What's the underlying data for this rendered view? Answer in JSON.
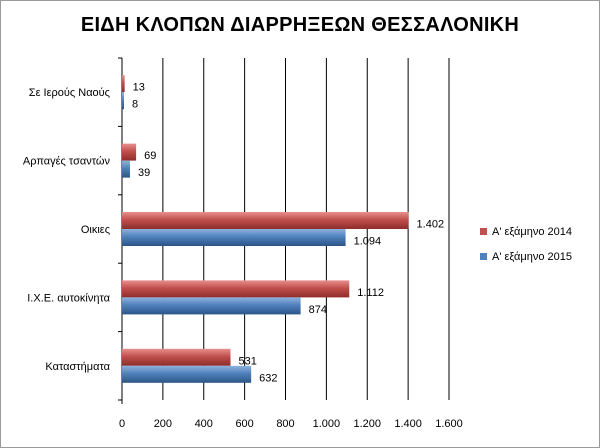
{
  "colors": {
    "series_2014": "#c0504d",
    "series_2015": "#4f81bd",
    "gridline": "#000000",
    "axis": "#000000"
  },
  "chart_data": {
    "type": "bar",
    "orientation": "horizontal",
    "title": "ΕΙΔΗ ΚΛΟΠΩΝ ΔΙΑΡΡΗΞΕΩΝ ΘΕΣΣΑΛΟΝΙΚΗ",
    "categories": [
      "Σε Ιερούς Ναούς",
      "Αρπαγές τσαντών",
      "Οικιες",
      "Ι.Χ.Ε. αυτοκίνητα",
      "Καταστήματα"
    ],
    "series": [
      {
        "name": "Α' εξάμηνο 2014",
        "values": [
          13,
          69,
          1402,
          1112,
          531
        ],
        "labels": [
          "13",
          "69",
          "1.402",
          "1.112",
          "531"
        ]
      },
      {
        "name": "Α' εξάμηνο 2015",
        "values": [
          8,
          39,
          1094,
          874,
          632
        ],
        "labels": [
          "8",
          "39",
          "1.094",
          "874",
          "632"
        ]
      }
    ],
    "xlim": [
      0,
      1600
    ],
    "xticks": [
      0,
      200,
      400,
      600,
      800,
      1000,
      1200,
      1400,
      1600
    ],
    "xtick_labels": [
      "0",
      "200",
      "400",
      "600",
      "800",
      "1.000",
      "1.200",
      "1.400",
      "1.600"
    ],
    "grid": true,
    "legend_position": "right"
  }
}
